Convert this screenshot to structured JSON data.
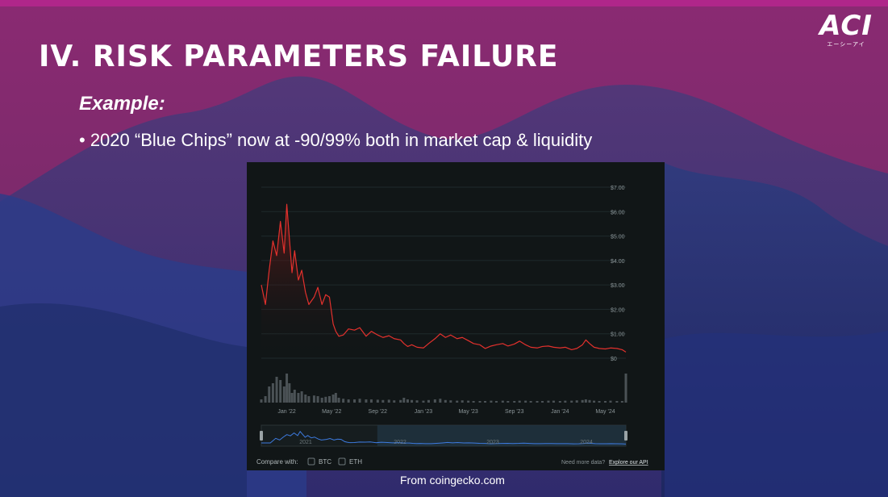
{
  "slide": {
    "title": "IV. RISK PARAMETERS FAILURE",
    "subtitle": "Example:",
    "bullet": "• 2020 “Blue Chips” now at -90/99% both in market cap & liquidity",
    "source": "From coingecko.com",
    "logo": "ACI",
    "logo_sub": "エーシーアイ"
  },
  "colors": {
    "price_line": "#e3312d",
    "panel_bg": "#111617",
    "volume": "#5a6266",
    "nav_line": "#3d7be0"
  },
  "chart_data": {
    "type": "line",
    "x_ticks": [
      "Jan '22",
      "May '22",
      "Sep '22",
      "Jan '23",
      "May '23",
      "Sep '23",
      "Jan '24",
      "May '24"
    ],
    "y_ticks": [
      "$7.00",
      "$6.00",
      "$5.00",
      "$4.00",
      "$3.00",
      "$2.00",
      "$1.00",
      "$0"
    ],
    "ylim": [
      0,
      7
    ],
    "navigator_ticks": [
      "2021",
      "2022",
      "2023",
      "2024"
    ],
    "series": [
      {
        "x": [
          "2021-10-25",
          "2021-11-05",
          "2021-11-15",
          "2021-11-25",
          "2021-12-05",
          "2021-12-15",
          "2021-12-25",
          "2022-01-01",
          "2022-01-08",
          "2022-01-15",
          "2022-01-22",
          "2022-02-01",
          "2022-02-10",
          "2022-02-20",
          "2022-03-01",
          "2022-03-15",
          "2022-03-25",
          "2022-04-05",
          "2022-04-15",
          "2022-04-25",
          "2022-05-05",
          "2022-05-12",
          "2022-05-20",
          "2022-06-01",
          "2022-06-15",
          "2022-07-01",
          "2022-07-15",
          "2022-08-01",
          "2022-08-15",
          "2022-09-01",
          "2022-09-15",
          "2022-10-01",
          "2022-10-15",
          "2022-11-01",
          "2022-11-10",
          "2022-11-20",
          "2022-12-01",
          "2022-12-15",
          "2023-01-01",
          "2023-01-15",
          "2023-02-01",
          "2023-02-15",
          "2023-03-01",
          "2023-03-15",
          "2023-04-01",
          "2023-04-15",
          "2023-05-01",
          "2023-05-15",
          "2023-06-01",
          "2023-06-15",
          "2023-07-01",
          "2023-07-15",
          "2023-08-01",
          "2023-08-15",
          "2023-09-01",
          "2023-09-15",
          "2023-10-01",
          "2023-10-15",
          "2023-11-01",
          "2023-11-15",
          "2023-12-01",
          "2023-12-15",
          "2024-01-01",
          "2024-01-15",
          "2024-02-01",
          "2024-02-15",
          "2024-03-01",
          "2024-03-10",
          "2024-03-20",
          "2024-04-01",
          "2024-04-15",
          "2024-05-01",
          "2024-05-15",
          "2024-06-01",
          "2024-06-15",
          "2024-06-25"
        ],
        "y": [
          3.0,
          2.2,
          3.6,
          4.8,
          4.2,
          5.6,
          4.3,
          6.3,
          4.9,
          3.5,
          4.4,
          3.2,
          3.6,
          2.7,
          2.2,
          2.5,
          2.9,
          2.2,
          2.6,
          2.5,
          1.4,
          1.1,
          0.9,
          0.95,
          1.2,
          1.15,
          1.25,
          0.9,
          1.1,
          0.95,
          0.85,
          0.92,
          0.8,
          0.75,
          0.6,
          0.48,
          0.55,
          0.45,
          0.42,
          0.6,
          0.8,
          1.0,
          0.85,
          0.95,
          0.8,
          0.85,
          0.72,
          0.6,
          0.55,
          0.4,
          0.5,
          0.55,
          0.6,
          0.5,
          0.58,
          0.7,
          0.55,
          0.45,
          0.42,
          0.48,
          0.5,
          0.45,
          0.42,
          0.45,
          0.35,
          0.4,
          0.55,
          0.75,
          0.6,
          0.45,
          0.4,
          0.38,
          0.42,
          0.4,
          0.35,
          0.25
        ]
      }
    ],
    "volume": [
      0.1,
      0.2,
      0.5,
      0.6,
      0.8,
      0.7,
      0.5,
      0.9,
      0.6,
      0.3,
      0.4,
      0.3,
      0.35,
      0.25,
      0.2,
      0.22,
      0.2,
      0.15,
      0.18,
      0.2,
      0.25,
      0.3,
      0.15,
      0.12,
      0.1,
      0.1,
      0.12,
      0.1,
      0.1,
      0.09,
      0.08,
      0.09,
      0.07,
      0.08,
      0.15,
      0.1,
      0.08,
      0.07,
      0.06,
      0.08,
      0.1,
      0.12,
      0.08,
      0.07,
      0.06,
      0.07,
      0.06,
      0.05,
      0.05,
      0.05,
      0.06,
      0.05,
      0.06,
      0.05,
      0.05,
      0.06,
      0.06,
      0.05,
      0.05,
      0.05,
      0.06,
      0.06,
      0.05,
      0.06,
      0.06,
      0.07,
      0.08,
      0.1,
      0.08,
      0.06,
      0.05,
      0.05,
      0.06,
      0.05,
      0.05,
      0.9
    ],
    "navigator_range": [
      "2021-09-15",
      "2024-06-25"
    ],
    "navigator_window": [
      "2021-10-25",
      "2024-06-25"
    ],
    "footer_left": "Compare with:",
    "compare_options": [
      "BTC",
      "ETH"
    ],
    "footer_right": "Need more data?",
    "footer_link": "Explore our API"
  }
}
